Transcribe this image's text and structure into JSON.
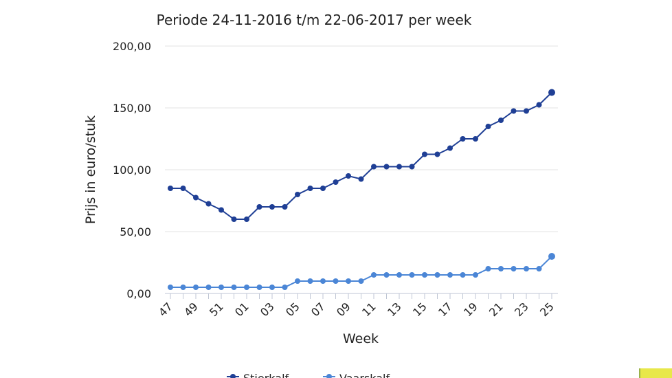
{
  "chart_data": {
    "type": "line",
    "title": "Periode 24-11-2016 t/m 22-06-2017 per week",
    "xlabel": "Week",
    "ylabel": "Prijs in euro/stuk",
    "ylim": [
      0,
      200
    ],
    "yticks": [
      "0,00",
      "50,00",
      "100,00",
      "150,00",
      "200,00"
    ],
    "ytick_values": [
      0,
      50,
      100,
      150,
      200
    ],
    "grid": true,
    "legend_position": "bottom",
    "categories": [
      "47",
      "48",
      "49",
      "50",
      "51",
      "52",
      "01",
      "02",
      "03",
      "04",
      "05",
      "06",
      "07",
      "08",
      "09",
      "10",
      "11",
      "12",
      "13",
      "14",
      "15",
      "16",
      "17",
      "18",
      "19",
      "20",
      "21",
      "22",
      "23",
      "24",
      "25"
    ],
    "xtick_labels": [
      "47",
      "49",
      "51",
      "01",
      "03",
      "05",
      "07",
      "09",
      "11",
      "13",
      "15",
      "17",
      "19",
      "21",
      "23",
      "25"
    ],
    "series": [
      {
        "name": "Stierkalf",
        "color": "#1f3f95",
        "values": [
          85,
          85,
          77.5,
          72.5,
          67.5,
          60,
          60,
          70,
          70,
          70,
          80,
          85,
          85,
          90,
          95,
          92.5,
          102.5,
          102.5,
          102.5,
          102.5,
          112.5,
          112.5,
          117.5,
          125,
          125,
          135,
          140,
          147.5,
          147.5,
          152.5,
          162.5
        ]
      },
      {
        "name": "Vaarskalf",
        "color": "#4b86d6",
        "values": [
          5,
          5,
          5,
          5,
          5,
          5,
          5,
          5,
          5,
          5,
          10,
          10,
          10,
          10,
          10,
          10,
          15,
          15,
          15,
          15,
          15,
          15,
          15,
          15,
          15,
          20,
          20,
          20,
          20,
          20,
          30
        ]
      }
    ]
  }
}
